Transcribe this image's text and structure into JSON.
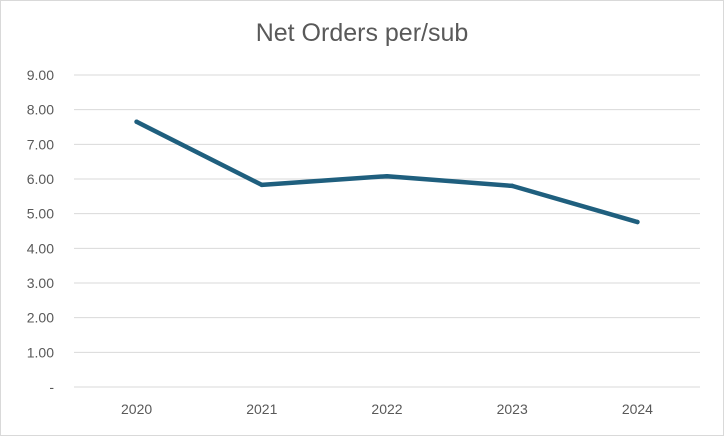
{
  "chart_data": {
    "type": "line",
    "title": "Net Orders per/sub",
    "xlabel": "",
    "ylabel": "",
    "categories": [
      "2020",
      "2021",
      "2022",
      "2023",
      "2024"
    ],
    "series": [
      {
        "values": [
          7.65,
          5.83,
          6.08,
          5.8,
          4.76
        ],
        "color": "#1f5f7e"
      }
    ],
    "ylim": [
      0,
      9
    ],
    "y_ticks": [
      0,
      1,
      2,
      3,
      4,
      5,
      6,
      7,
      8,
      9
    ],
    "y_tick_labels": [
      "-",
      "1.00",
      "2.00",
      "3.00",
      "4.00",
      "5.00",
      "6.00",
      "7.00",
      "8.00",
      "9.00"
    ],
    "grid": "horizontal",
    "legend": "none",
    "gridline_color": "#d9d9d9",
    "text_color": "#595959"
  }
}
